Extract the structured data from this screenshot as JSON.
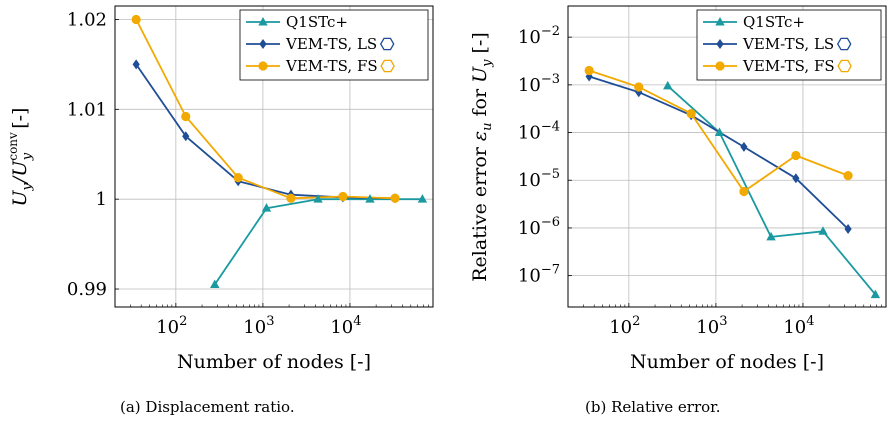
{
  "colors": {
    "q1stc": "#1a9aa0",
    "vem_ls": "#1f4e96",
    "vem_fs": "#f2a900",
    "grid": "#bdbdbd"
  },
  "chart_data": [
    {
      "type": "line",
      "caption": "(a) Displacement ratio.",
      "xlabel": "Number of nodes [-]",
      "ylabel_main": "U",
      "ylabel_sub": "y",
      "ylabel_div": "/U",
      "ylabel_sup": "conv",
      "ylabel_sub2": "y",
      "ylabel_unit": " [-]",
      "xscale": "log",
      "xlim": [
        20,
        90000
      ],
      "ylim": [
        0.988,
        1.0215
      ],
      "x_ticks": [
        {
          "v": 100,
          "b": "10",
          "e": "2"
        },
        {
          "v": 1000,
          "b": "10",
          "e": "3"
        },
        {
          "v": 10000,
          "b": "10",
          "e": "4"
        }
      ],
      "y_ticks": [
        {
          "v": 0.99,
          "label": "0.99"
        },
        {
          "v": 1.0,
          "label": "1"
        },
        {
          "v": 1.01,
          "label": "1.01"
        },
        {
          "v": 1.02,
          "label": "1.02"
        }
      ],
      "grid": true,
      "legend_position": "top-right",
      "series": [
        {
          "name": "Q1STc+",
          "color_key": "q1stc",
          "marker": "triangle",
          "x": [
            280,
            1100,
            4300,
            17000,
            68000
          ],
          "y": [
            0.9905,
            0.999,
            1.0,
            1.0,
            1.0
          ]
        },
        {
          "name": "VEM-TS, LS",
          "color_key": "vem_ls",
          "marker": "diamond",
          "legend_glyph": "hexagon",
          "x": [
            35,
            130,
            520,
            2100,
            8300,
            33000
          ],
          "y": [
            1.015,
            1.007,
            1.002,
            1.0005,
            1.0002,
            1.0001
          ]
        },
        {
          "name": "VEM-TS, FS",
          "color_key": "vem_fs",
          "marker": "circle",
          "legend_glyph": "hexagon",
          "x": [
            35,
            130,
            520,
            2100,
            8300,
            33000
          ],
          "y": [
            1.02,
            1.0092,
            1.0024,
            1.0001,
            1.0003,
            1.0001
          ]
        }
      ]
    },
    {
      "type": "line",
      "caption": "(b) Relative error.",
      "xlabel": "Number of nodes [-]",
      "ylabel_pre": "Relative error ",
      "ylabel_eps": "ε",
      "ylabel_eps_sub": "u",
      "ylabel_mid": "  for ",
      "ylabel_u": "U",
      "ylabel_u_sub": "y",
      "ylabel_unit": " [-]",
      "xscale": "log",
      "yscale": "log",
      "xlim": [
        20,
        90000
      ],
      "ylim": [
        2.2e-08,
        0.045
      ],
      "x_ticks": [
        {
          "v": 100,
          "b": "10",
          "e": "2"
        },
        {
          "v": 1000,
          "b": "10",
          "e": "3"
        },
        {
          "v": 10000,
          "b": "10",
          "e": "4"
        }
      ],
      "y_ticks": [
        {
          "v": 1e-07,
          "b": "10",
          "e": "−7"
        },
        {
          "v": 1e-06,
          "b": "10",
          "e": "−6"
        },
        {
          "v": 1e-05,
          "b": "10",
          "e": "−5"
        },
        {
          "v": 0.0001,
          "b": "10",
          "e": "−4"
        },
        {
          "v": 0.001,
          "b": "10",
          "e": "−3"
        },
        {
          "v": 0.01,
          "b": "10",
          "e": "−2"
        }
      ],
      "grid": true,
      "legend_position": "top-right",
      "series": [
        {
          "name": "Q1STc+",
          "color_key": "q1stc",
          "marker": "triangle",
          "x": [
            280,
            1100,
            4300,
            17000,
            68000
          ],
          "y": [
            0.00095,
            0.0001,
            6.5e-07,
            8.5e-07,
            4e-08
          ]
        },
        {
          "name": "VEM-TS, LS",
          "color_key": "vem_ls",
          "marker": "diamond",
          "legend_glyph": "hexagon",
          "x": [
            35,
            130,
            520,
            2100,
            8300,
            33000
          ],
          "y": [
            0.0015,
            0.0007,
            0.00023,
            5e-05,
            1.1e-05,
            9.5e-07
          ]
        },
        {
          "name": "VEM-TS, FS",
          "color_key": "vem_fs",
          "marker": "circle",
          "legend_glyph": "hexagon",
          "x": [
            35,
            130,
            520,
            2100,
            8300,
            33000
          ],
          "y": [
            0.002,
            0.0009,
            0.00025,
            5.8e-06,
            3.3e-05,
            1.25e-05
          ]
        }
      ]
    }
  ]
}
